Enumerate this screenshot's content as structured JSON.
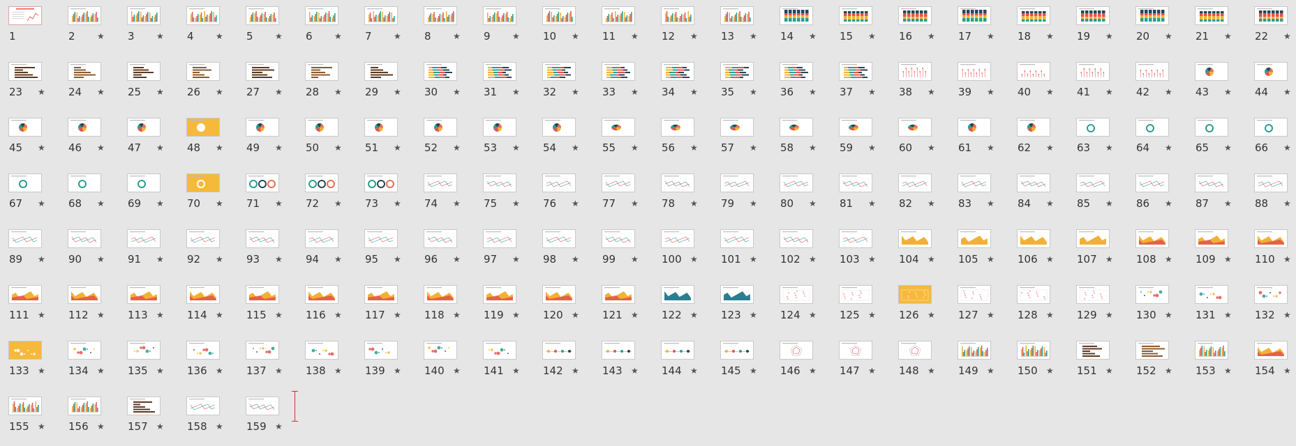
{
  "slide_sorter": {
    "slide_count": 159,
    "selected_slide": 1,
    "transition_marker": "★",
    "slides_with_marker_from": 2,
    "thumbnail_kinds": {
      "1": "cover",
      "2": "column",
      "3": "column",
      "4": "column",
      "5": "column",
      "6": "column",
      "7": "column",
      "8": "column",
      "9": "column",
      "10": "column",
      "11": "column",
      "12": "column",
      "13": "column",
      "14": "stacked",
      "15": "stacked",
      "16": "stacked",
      "17": "stacked",
      "18": "stacked",
      "19": "stacked",
      "20": "stacked",
      "21": "stacked",
      "22": "stacked",
      "23": "hbar",
      "24": "hbar",
      "25": "hbar",
      "26": "hbar",
      "27": "hbar",
      "28": "hbar",
      "29": "hbar",
      "30": "hstacked",
      "31": "hstacked",
      "32": "hstacked",
      "33": "hstacked",
      "34": "hstacked",
      "35": "hstacked",
      "36": "hstacked",
      "37": "hstacked",
      "38": "lollipop",
      "39": "lollipop",
      "40": "lollipop",
      "41": "lollipop",
      "42": "lollipop",
      "43": "pie",
      "44": "pie",
      "45": "pie",
      "46": "pie",
      "47": "pie",
      "48": "pie-yellow",
      "49": "pie",
      "50": "pie",
      "51": "pie",
      "52": "pie",
      "53": "pie",
      "54": "pie",
      "55": "pie3d",
      "56": "pie3d",
      "57": "pie3d",
      "58": "pie3d",
      "59": "pie3d",
      "60": "pie3d",
      "61": "pie",
      "62": "pie",
      "63": "donut",
      "64": "donut",
      "65": "donut",
      "66": "donut",
      "67": "donut",
      "68": "donut",
      "69": "donut",
      "70": "donut-yellow",
      "71": "donut-multi",
      "72": "donut-multi",
      "73": "donut-multi",
      "74": "line",
      "75": "line",
      "76": "line",
      "77": "line",
      "78": "line",
      "79": "line",
      "80": "line",
      "81": "line",
      "82": "line",
      "83": "line",
      "84": "line",
      "85": "line",
      "86": "line",
      "87": "line",
      "88": "line",
      "89": "line",
      "90": "line",
      "91": "line",
      "92": "line",
      "93": "line",
      "94": "line",
      "95": "line",
      "96": "line",
      "97": "line",
      "98": "line",
      "99": "line",
      "100": "line",
      "101": "line",
      "102": "line",
      "103": "line",
      "104": "area",
      "105": "area",
      "106": "area",
      "107": "area",
      "108": "area",
      "109": "area",
      "110": "area",
      "111": "area",
      "112": "area",
      "113": "area",
      "114": "area",
      "115": "area",
      "116": "area",
      "117": "area",
      "118": "area",
      "119": "area",
      "120": "area",
      "121": "area",
      "122": "area-teal",
      "123": "area-teal",
      "124": "scatter",
      "125": "scatter",
      "126": "scatter-yellow",
      "127": "scatter",
      "128": "scatter",
      "129": "scatter",
      "130": "bubble",
      "131": "bubble",
      "132": "bubble",
      "133": "bubble-yellow",
      "134": "bubble",
      "135": "bubble",
      "136": "bubble",
      "137": "bubble",
      "138": "bubble",
      "139": "bubble",
      "140": "bubble",
      "141": "bubble",
      "142": "timeline",
      "143": "timeline",
      "144": "timeline",
      "145": "timeline",
      "146": "radar",
      "147": "radar",
      "148": "radar",
      "149": "column",
      "150": "column",
      "151": "hbar",
      "152": "hbar",
      "153": "column",
      "154": "area",
      "155": "column",
      "156": "column",
      "157": "hbar",
      "158": "line",
      "159": "line"
    }
  }
}
